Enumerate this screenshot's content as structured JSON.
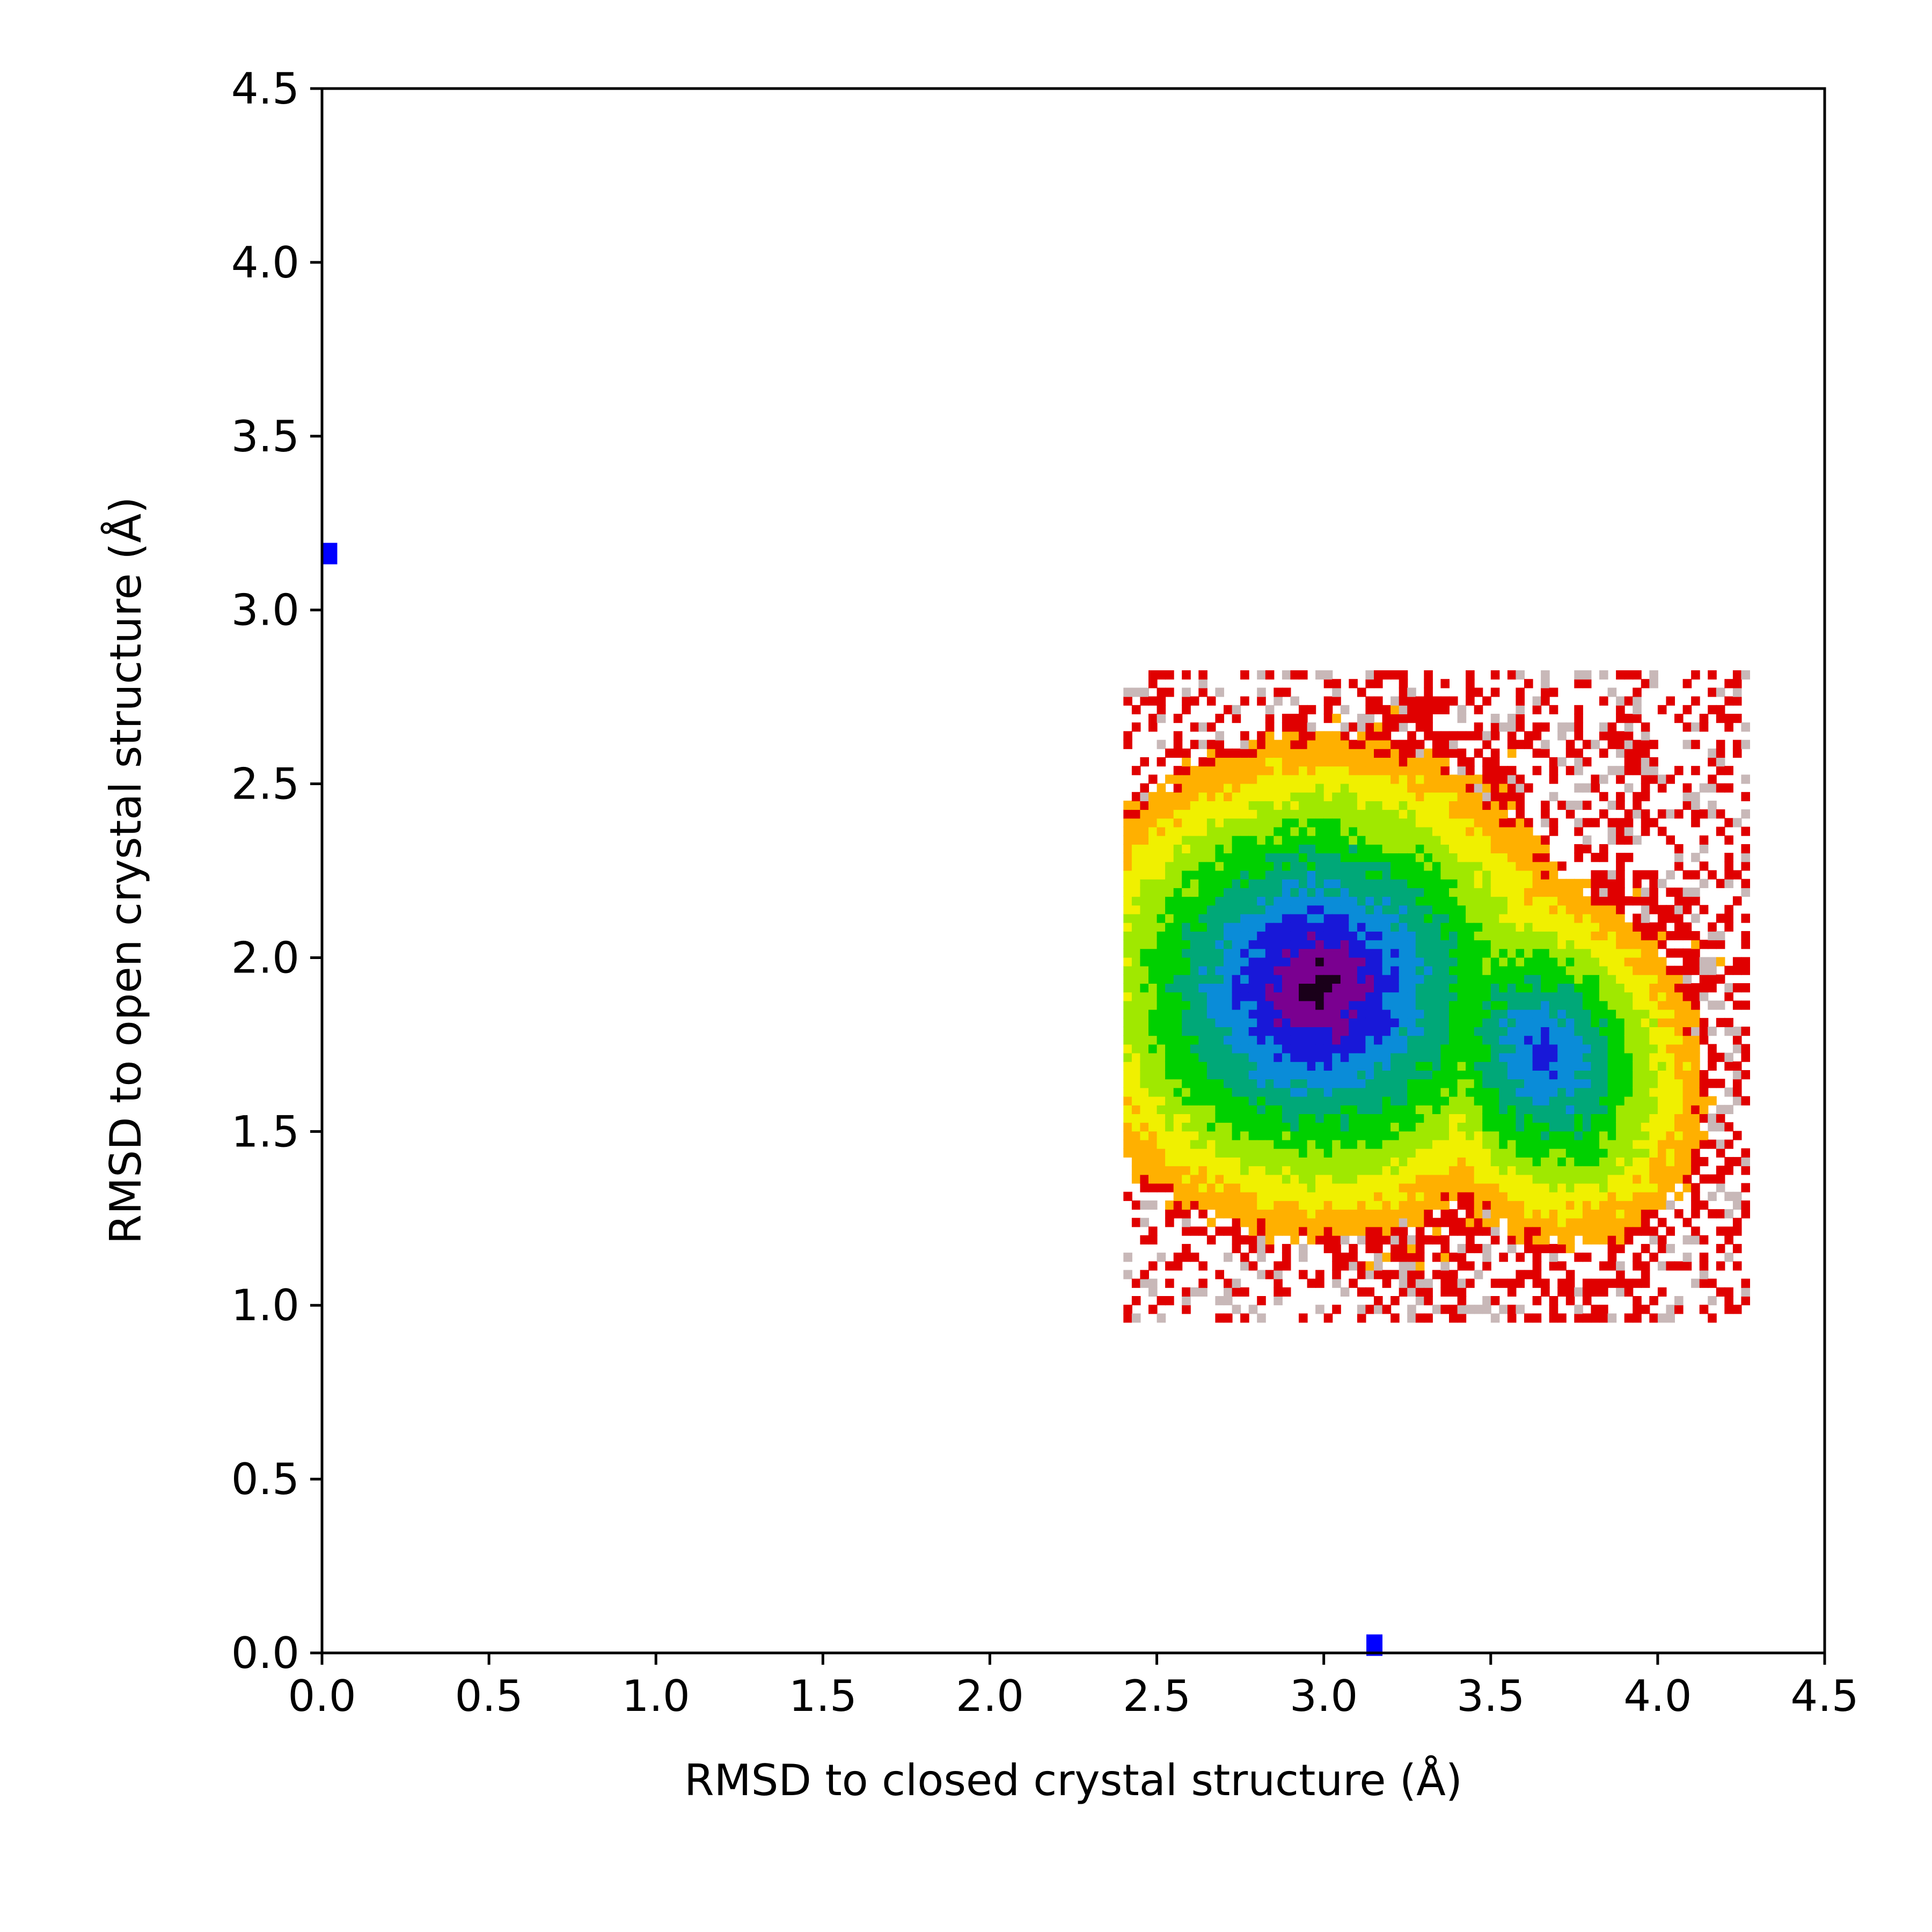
{
  "chart_data": {
    "type": "heatmap",
    "subtype": "filled-contour free-energy landscape",
    "title": "",
    "xlabel": "RMSD to closed crystal structure (Å)",
    "ylabel": "RMSD to open crystal structure (Å)",
    "xlim": [
      0.0,
      4.5
    ],
    "ylim": [
      0.0,
      4.5
    ],
    "x_ticks": [
      "0.0",
      "0.5",
      "1.0",
      "1.5",
      "2.0",
      "2.5",
      "3.0",
      "3.5",
      "4.0",
      "4.5"
    ],
    "y_ticks": [
      "0.0",
      "0.5",
      "1.0",
      "1.5",
      "2.0",
      "2.5",
      "3.0",
      "3.5",
      "4.0",
      "4.5"
    ],
    "grid": false,
    "legend": "none",
    "colormap": "nipy_spectral (reversed: black/purple = lowest, red = highest)",
    "level_colors": [
      "#1a001a",
      "#7a0090",
      "#1818d8",
      "#0a8cd8",
      "#00a878",
      "#00d000",
      "#a0e800",
      "#f0f000",
      "#ffb000",
      "#e00000",
      "#c8b8b8"
    ],
    "basins": [
      {
        "cx": 2.97,
        "cy": 1.9,
        "rx": 0.42,
        "ry": 0.38,
        "rotation_deg": 0,
        "depth": 10
      },
      {
        "cx": 3.65,
        "cy": 1.7,
        "rx": 0.24,
        "ry": 0.3,
        "rotation_deg": 30,
        "depth": 8
      }
    ],
    "reference_markers": [
      {
        "label": "",
        "x": 0.02,
        "y": 3.15,
        "color": "#0000ff"
      },
      {
        "label": "",
        "x": 3.15,
        "y": 0.01,
        "color": "#0000ff"
      }
    ]
  }
}
